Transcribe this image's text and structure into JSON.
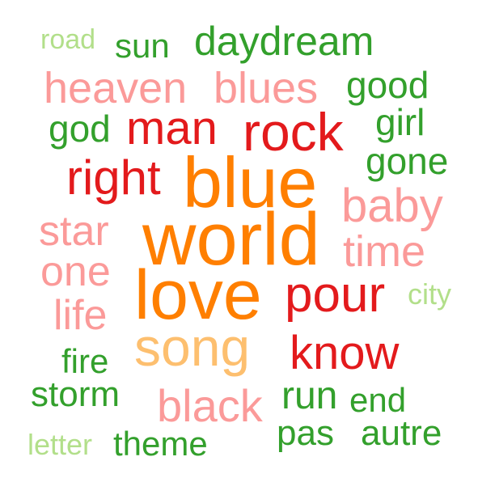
{
  "palette": {
    "orange": "#ff7f00",
    "light-orange": "#fdbf6f",
    "red": "#e31a1c",
    "pink": "#fb9a99",
    "green": "#33a02c",
    "light-green": "#b2df8a"
  },
  "words": [
    {
      "text": "road",
      "color": "light-green"
    },
    {
      "text": "sun",
      "color": "green"
    },
    {
      "text": "daydream",
      "color": "green"
    },
    {
      "text": "heaven",
      "color": "pink"
    },
    {
      "text": "blues",
      "color": "pink"
    },
    {
      "text": "good",
      "color": "green"
    },
    {
      "text": "god",
      "color": "green"
    },
    {
      "text": "man",
      "color": "red"
    },
    {
      "text": "rock",
      "color": "red"
    },
    {
      "text": "girl",
      "color": "green"
    },
    {
      "text": "gone",
      "color": "green"
    },
    {
      "text": "right",
      "color": "red"
    },
    {
      "text": "blue",
      "color": "orange"
    },
    {
      "text": "baby",
      "color": "pink"
    },
    {
      "text": "star",
      "color": "pink"
    },
    {
      "text": "world",
      "color": "orange"
    },
    {
      "text": "time",
      "color": "pink"
    },
    {
      "text": "one",
      "color": "pink"
    },
    {
      "text": "love",
      "color": "orange"
    },
    {
      "text": "pour",
      "color": "red"
    },
    {
      "text": "city",
      "color": "light-green"
    },
    {
      "text": "life",
      "color": "pink"
    },
    {
      "text": "song",
      "color": "light-orange"
    },
    {
      "text": "know",
      "color": "red"
    },
    {
      "text": "fire",
      "color": "green"
    },
    {
      "text": "storm",
      "color": "green"
    },
    {
      "text": "black",
      "color": "pink"
    },
    {
      "text": "run",
      "color": "green"
    },
    {
      "text": "end",
      "color": "green"
    },
    {
      "text": "pas",
      "color": "green"
    },
    {
      "text": "autre",
      "color": "green"
    },
    {
      "text": "letter",
      "color": "light-green"
    },
    {
      "text": "theme",
      "color": "green"
    }
  ]
}
